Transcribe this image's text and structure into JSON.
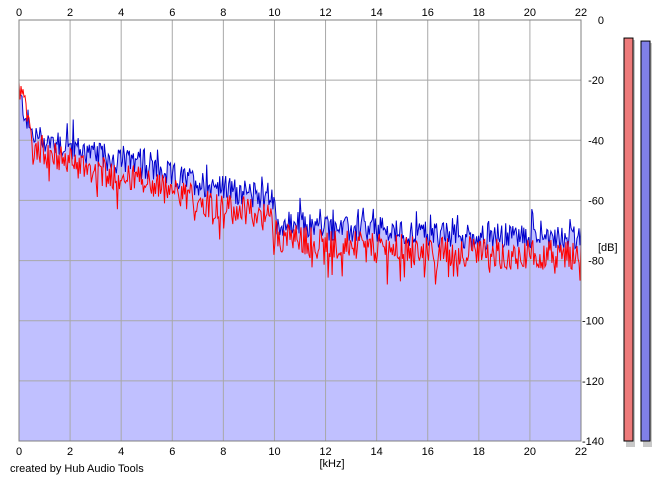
{
  "credit_text": "created by Hub Audio Tools",
  "colors": {
    "background": "#ffffff",
    "plot_fill": "#c0c0ff",
    "grid": "#a8a8a8",
    "channel_left": "#ff0000",
    "channel_right": "#0000cc",
    "meter_left": "#ee7b7b",
    "meter_right": "#8080e8"
  },
  "chart_data": {
    "type": "line",
    "title": "",
    "xlabel": "[kHz]",
    "ylabel": "[dB]",
    "xlim": [
      0,
      22
    ],
    "ylim": [
      -140,
      0
    ],
    "x_ticks": [
      0,
      2,
      4,
      6,
      8,
      10,
      12,
      14,
      16,
      18,
      20,
      22
    ],
    "x_tick_labels": [
      "0",
      "2",
      "4",
      "6",
      "8",
      "10",
      "12",
      "14",
      "16",
      "18",
      "20",
      "22"
    ],
    "y_ticks": [
      0,
      -20,
      -40,
      -60,
      -80,
      -100,
      -120,
      -140
    ],
    "y_tick_labels": [
      "0",
      "-20",
      "-40",
      "-60",
      "-80",
      "-100",
      "-120",
      "-140"
    ],
    "grid": true,
    "legend": "none",
    "series": [
      {
        "color": "#0000cc",
        "x": [
          0,
          0.2,
          0.5,
          1,
          1.5,
          2,
          3,
          4,
          5,
          6,
          7,
          8,
          9,
          9.9,
          10.1,
          11,
          12,
          13,
          14,
          15,
          16,
          17,
          18,
          19,
          20,
          21,
          22
        ],
        "values": [
          -25,
          -30,
          -38,
          -40,
          -41,
          -42,
          -45,
          -47,
          -49,
          -52,
          -54,
          -56,
          -58,
          -59,
          -68,
          -68,
          -69,
          -70,
          -70,
          -71,
          -71,
          -72,
          -72,
          -72,
          -72,
          -72,
          -73
        ]
      },
      {
        "color": "#ff0000",
        "x": [
          0,
          0.2,
          0.5,
          1,
          1.5,
          2,
          3,
          4,
          5,
          6,
          7,
          8,
          9,
          9.9,
          10.1,
          11,
          12,
          13,
          14,
          15,
          16,
          17,
          18,
          19,
          20,
          21,
          22
        ],
        "values": [
          -22,
          -28,
          -40,
          -44,
          -46,
          -47,
          -50,
          -52,
          -54,
          -57,
          -60,
          -62,
          -64,
          -66,
          -72,
          -73,
          -74,
          -75,
          -76,
          -76,
          -77,
          -77,
          -77,
          -78,
          -78,
          -78,
          -78
        ]
      }
    ],
    "level_meters": [
      {
        "channel": "L",
        "peak_db": -6,
        "color": "#ee7b7b"
      },
      {
        "channel": "R",
        "peak_db": -7,
        "color": "#8080e8"
      }
    ]
  }
}
